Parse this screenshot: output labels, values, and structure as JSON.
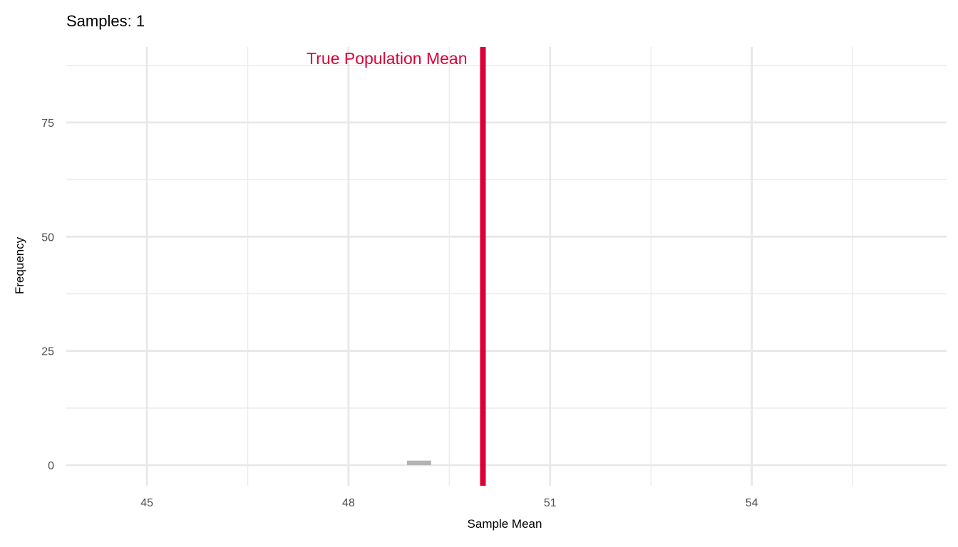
{
  "title": "Samples: 1",
  "chart_data": {
    "type": "bar",
    "title": "Samples: 1",
    "xlabel": "Sample Mean",
    "ylabel": "Frequency",
    "xlim": [
      43.8,
      56.9
    ],
    "ylim": [
      -4.5,
      91.5
    ],
    "x_ticks": [
      45,
      48,
      51,
      54
    ],
    "x_tick_labels": [
      "45",
      "48",
      "51",
      "54"
    ],
    "y_ticks": [
      0,
      25,
      50,
      75
    ],
    "y_tick_labels": [
      "0",
      "25",
      "50",
      "75"
    ],
    "grid": true,
    "legend": "none",
    "bar_color": "#b3b3b3",
    "bins": [
      {
        "x_start": 48.87,
        "x_end": 49.23,
        "value": 1
      }
    ],
    "reference_line": {
      "x": 50,
      "label": "True Population Mean",
      "color": "#dc0037"
    }
  }
}
